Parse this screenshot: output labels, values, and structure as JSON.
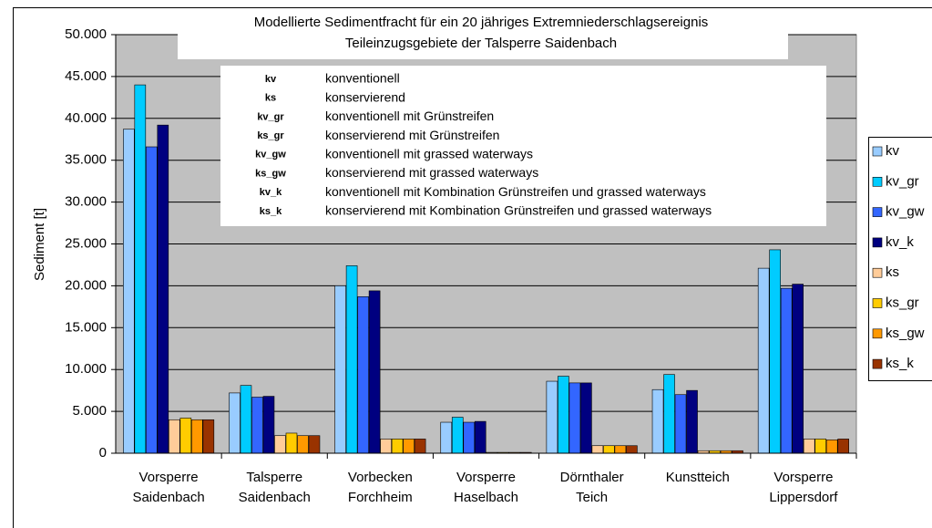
{
  "chart_data": {
    "type": "bar",
    "title": "Modellierte Sedimentfracht für ein 20 jähriges Extremniederschlagsereignis",
    "subtitle": "Teileinzugsgebiete der Talsperre Saidenbach",
    "y_label": "Sediment [t]",
    "categories": [
      "Vorsperre Saidenbach",
      "Talsperre Saidenbach",
      "Vorbecken Forchheim",
      "Vorsperre Haselbach",
      "Dörnthaler Teich",
      "Kunstteich",
      "Vorsperre Lippersdorf"
    ],
    "series": [
      {
        "name": "kv",
        "color": "#99ccff",
        "values": [
          38700,
          7200,
          20000,
          3700,
          8600,
          7600,
          22100
        ]
      },
      {
        "name": "kv_gr",
        "color": "#00ccff",
        "values": [
          44000,
          8100,
          22400,
          4300,
          9200,
          9400,
          24300
        ]
      },
      {
        "name": "kv_gw",
        "color": "#3366ff",
        "values": [
          36600,
          6700,
          18700,
          3700,
          8400,
          7000,
          19700
        ]
      },
      {
        "name": "kv_k",
        "color": "#000080",
        "values": [
          39200,
          6800,
          19400,
          3800,
          8400,
          7500,
          20200
        ]
      },
      {
        "name": "ks",
        "color": "#ffcc99",
        "values": [
          4000,
          2100,
          1700,
          100,
          900,
          300,
          1700
        ]
      },
      {
        "name": "ks_gr",
        "color": "#ffcc00",
        "values": [
          4200,
          2400,
          1700,
          100,
          900,
          300,
          1700
        ]
      },
      {
        "name": "ks_gw",
        "color": "#ff9900",
        "values": [
          4000,
          2100,
          1700,
          100,
          900,
          300,
          1600
        ]
      },
      {
        "name": "ks_k",
        "color": "#993300",
        "values": [
          4000,
          2100,
          1700,
          100,
          900,
          300,
          1700
        ]
      }
    ],
    "ylim": [
      0,
      50000
    ],
    "yticks": [
      0,
      {
        "value": 5000,
        "label": "5.000"
      },
      {
        "value": 10000,
        "label": "10.000"
      },
      {
        "value": 15000,
        "label": "15.000"
      },
      {
        "value": 20000,
        "label": "20.000"
      },
      {
        "value": 25000,
        "label": "25.000"
      },
      {
        "value": 30000,
        "label": "30.000"
      },
      {
        "value": 35000,
        "label": "35.000"
      },
      {
        "value": 40000,
        "label": "40.000"
      },
      {
        "value": 45000,
        "label": "45.000"
      },
      {
        "value": 50000,
        "label": "50.000"
      }
    ],
    "grid": true,
    "legend": "right",
    "annotations": [
      {
        "key": "kv",
        "text": "konventionell"
      },
      {
        "key": "ks",
        "text": "konservierend"
      },
      {
        "key": "kv_gr",
        "text": "konventionell mit Grünstreifen"
      },
      {
        "key": "ks_gr",
        "text": "konservierend mit Grünstreifen"
      },
      {
        "key": "kv_gw",
        "text": "konventionell mit grassed waterways"
      },
      {
        "key": "ks_gw",
        "text": "konservierend mit grassed waterways"
      },
      {
        "key": "kv_k",
        "text": "konventionell mit Kombination Grünstreifen und grassed waterways"
      },
      {
        "key": "ks_k",
        "text": "konservierend mit Kombination Grünstreifen und grassed waterways"
      }
    ]
  }
}
